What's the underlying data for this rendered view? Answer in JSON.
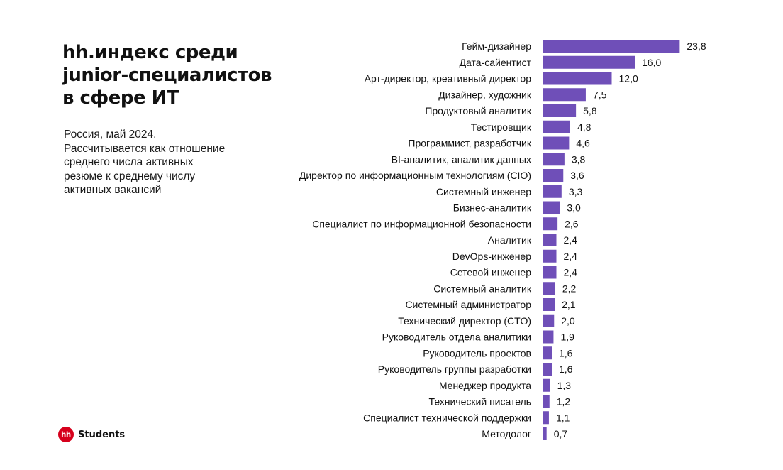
{
  "header": {
    "title_lines": [
      "hh.индекс среди",
      "junior-специалистов",
      "в сфере ИТ"
    ],
    "subtitle_lines": [
      "Россия, май 2024.",
      "Рассчитывается как отношение",
      "среднего числа активных",
      "резюме к среднему числу",
      "активных вакансий"
    ]
  },
  "logo": {
    "badge": "hh",
    "text": "Students",
    "badge_color": "#d6001c"
  },
  "colors": {
    "bar": "#6f4fb8",
    "text": "#111111"
  },
  "chart_data": {
    "type": "bar",
    "orientation": "horizontal",
    "title": "hh.индекс среди junior-специалистов в сфере ИТ",
    "xlabel": "",
    "ylabel": "",
    "grid": false,
    "legend": "none",
    "xlim": [
      0,
      24
    ],
    "categories": [
      "Гейм-дизайнер",
      "Дата-сайентист",
      "Арт-директор, креативный директор",
      "Дизайнер, художник",
      "Продуктовый аналитик",
      "Тестировщик",
      "Программист, разработчик",
      "BI-аналитик, аналитик данных",
      "Директор по информационным технологиям (CIO)",
      "Системный инженер",
      "Бизнес-аналитик",
      "Специалист по информационной безопасности",
      "Аналитик",
      "DevOps-инженер",
      "Сетевой инженер",
      "Системный аналитик",
      "Системный администратор",
      "Технический директор (CTO)",
      "Руководитель отдела аналитики",
      "Руководитель проектов",
      "Руководитель группы разработки",
      "Менеджер продукта",
      "Технический писатель",
      "Специалист технической поддержки",
      "Методолог"
    ],
    "values": [
      23.8,
      16.0,
      12.0,
      7.5,
      5.8,
      4.8,
      4.6,
      3.8,
      3.6,
      3.3,
      3.0,
      2.6,
      2.4,
      2.4,
      2.4,
      2.2,
      2.1,
      2.0,
      1.9,
      1.6,
      1.6,
      1.3,
      1.2,
      1.1,
      0.7
    ],
    "value_labels": [
      "23,8",
      "16,0",
      "12,0",
      "7,5",
      "5,8",
      "4,8",
      "4,6",
      "3,8",
      "3,6",
      "3,3",
      "3,0",
      "2,6",
      "2,4",
      "2,4",
      "2,4",
      "2,2",
      "2,1",
      "2,0",
      "1,9",
      "1,6",
      "1,6",
      "1,3",
      "1,2",
      "1,1",
      "0,7"
    ]
  }
}
